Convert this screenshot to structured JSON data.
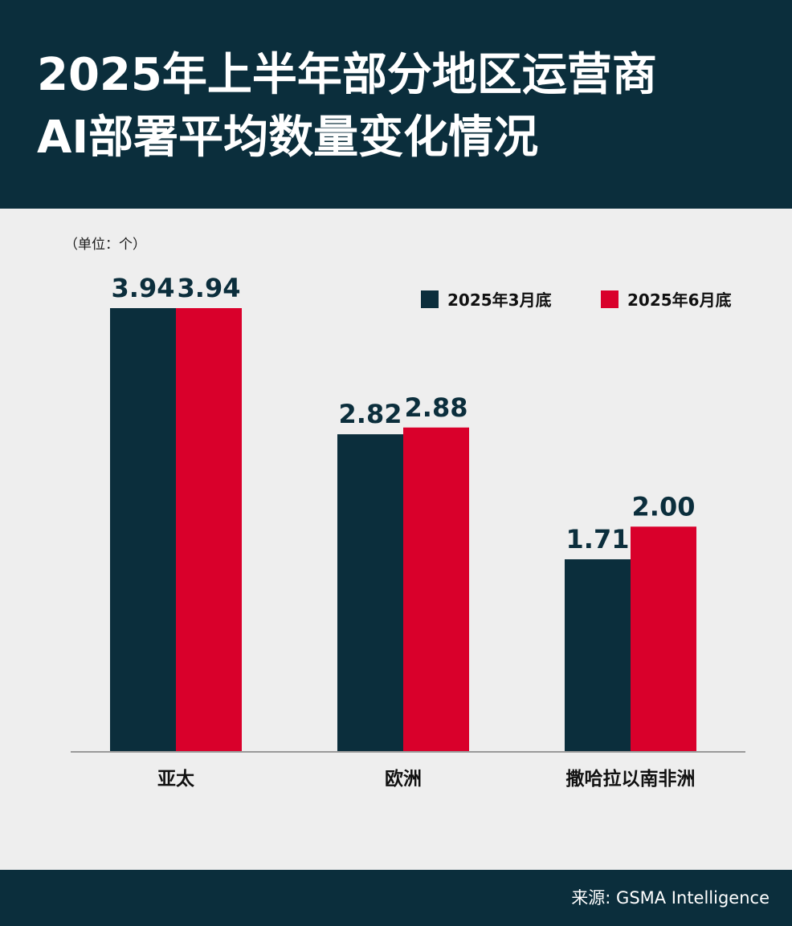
{
  "header": {
    "title_line1": "2025年上半年部分地区运营商",
    "title_line2": "AI部署平均数量变化情况"
  },
  "unit_label": "（单位：个）",
  "source": "来源: GSMA Intelligence",
  "colors": {
    "navy": "#0b2e3c",
    "red": "#d9002b",
    "background": "#eeeeee"
  },
  "chart_data": {
    "type": "bar",
    "categories": [
      "亚太",
      "欧洲",
      "撒哈拉以南非洲"
    ],
    "series": [
      {
        "name": "2025年3月底",
        "color": "#0b2e3c",
        "values": [
          3.94,
          2.82,
          1.71
        ]
      },
      {
        "name": "2025年6月底",
        "color": "#d9002b",
        "values": [
          3.94,
          2.88,
          2.0
        ]
      }
    ],
    "value_labels": [
      [
        "3.94",
        "2.82",
        "1.71"
      ],
      [
        "3.94",
        "2.88",
        "2.00"
      ]
    ],
    "legend_position": "top-right",
    "grid": false
  }
}
